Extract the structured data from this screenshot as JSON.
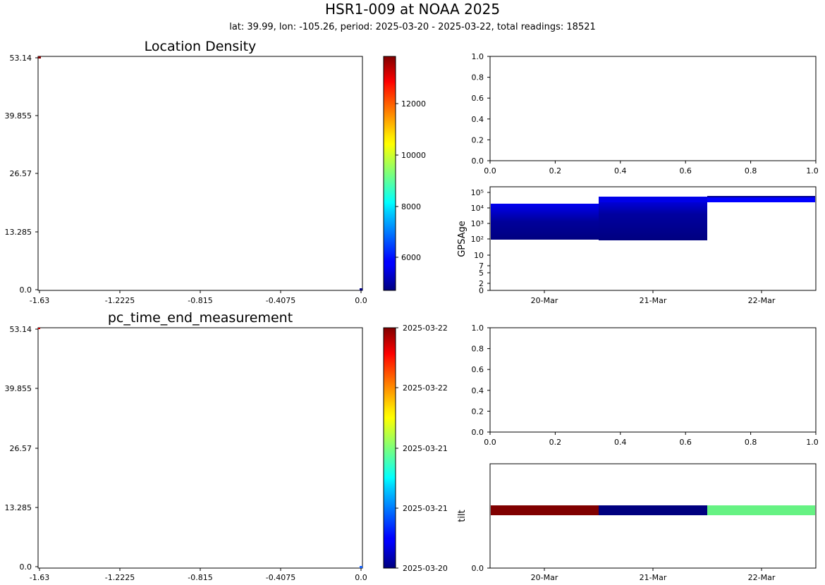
{
  "figure": {
    "title": "HSR1-009 at NOAA 2025",
    "subtitle": "lat: 39.99, lon: -105.26, period: 2025-03-20 - 2025-03-22, total readings: 18521"
  },
  "chart_data": [
    {
      "type": "heatmap",
      "title": "Location Density",
      "x_ticks": [
        "-1.63",
        "-1.2225",
        "-0.815",
        "-0.4075",
        "0.0"
      ],
      "x_tick_values": [
        -1.63,
        -1.2225,
        -0.815,
        -0.4075,
        0.0
      ],
      "y_ticks": [
        "0.0",
        "13.285",
        "26.57",
        "39.855",
        "53.14"
      ],
      "y_tick_values": [
        0.0,
        13.285,
        26.57,
        39.855,
        53.14
      ],
      "xlim": [
        -1.63,
        0.0
      ],
      "ylim": [
        0.0,
        53.14
      ],
      "cells": [
        {
          "x": -1.63,
          "y": 53.14,
          "value": 13700,
          "color": "#800000"
        },
        {
          "x": 0.0,
          "y": 0.0,
          "value": 4800,
          "color": "#00007f"
        }
      ],
      "colorbar": {
        "colormap": "jet",
        "vmin": 4700,
        "vmax": 13800,
        "ticks": [
          "6000",
          "8000",
          "10000",
          "12000"
        ],
        "tick_values": [
          6000,
          8000,
          10000,
          12000
        ]
      }
    },
    {
      "type": "line",
      "title": "",
      "xlim": [
        0.0,
        1.0
      ],
      "ylim": [
        0.0,
        1.0
      ],
      "x_ticks": [
        "0.0",
        "0.2",
        "0.4",
        "0.6",
        "0.8",
        "1.0"
      ],
      "y_ticks": [
        "0.0",
        "0.2",
        "0.4",
        "0.6",
        "0.8",
        "1.0"
      ],
      "series": []
    },
    {
      "type": "heatmap",
      "ylabel": "GPSAge",
      "y_scale": "symlog",
      "x_ticks": [
        "20-Mar",
        "21-Mar",
        "22-Mar"
      ],
      "y_ticks": [
        "0",
        "2",
        "5",
        "7",
        "10",
        "10²",
        "10³",
        "10⁴",
        "10⁵"
      ],
      "y_tick_values": [
        0,
        2,
        5,
        7,
        10,
        100,
        1000,
        10000,
        100000
      ],
      "ylim": [
        0,
        200000
      ],
      "columns": [
        {
          "day": "20-Mar",
          "y_min": 100,
          "y_max": 20000
        },
        {
          "day": "21-Mar",
          "y_min": 95,
          "y_max": 55000
        },
        {
          "day": "22-Mar",
          "y_min": 25000,
          "y_max": 60000
        }
      ]
    },
    {
      "type": "heatmap",
      "title": "pc_time_end_measurement",
      "x_ticks": [
        "-1.63",
        "-1.2225",
        "-0.815",
        "-0.4075",
        "0.0"
      ],
      "x_tick_values": [
        -1.63,
        -1.2225,
        -0.815,
        -0.4075,
        0.0
      ],
      "y_ticks": [
        "0.0",
        "13.285",
        "26.57",
        "39.855",
        "53.14"
      ],
      "y_tick_values": [
        0.0,
        13.285,
        26.57,
        39.855,
        53.14
      ],
      "xlim": [
        -1.63,
        0.0
      ],
      "ylim": [
        0.0,
        53.14
      ],
      "cells": [
        {
          "x": -1.63,
          "y": 53.14,
          "value": 0.95,
          "color": "#c00000"
        },
        {
          "x": 0.0,
          "y": 0.0,
          "value": 0.15,
          "color": "#1060ff"
        }
      ],
      "colorbar": {
        "colormap": "jet",
        "ticks": [
          "2025-03-20",
          "2025-03-21",
          "2025-03-21",
          "2025-03-22",
          "2025-03-22"
        ],
        "tick_values": [
          0.0,
          0.25,
          0.5,
          0.75,
          1.0
        ]
      }
    },
    {
      "type": "line",
      "title": "",
      "xlim": [
        0.0,
        1.0
      ],
      "ylim": [
        0.0,
        1.0
      ],
      "x_ticks": [
        "0.0",
        "0.2",
        "0.4",
        "0.6",
        "0.8",
        "1.0"
      ],
      "y_ticks": [
        "0.0",
        "0.2",
        "0.4",
        "0.6",
        "0.8",
        "1.0"
      ],
      "series": []
    },
    {
      "type": "heatmap",
      "ylabel": "tilt",
      "x_ticks": [
        "20-Mar",
        "21-Mar",
        "22-Mar"
      ],
      "y_ticks": [
        "0.0"
      ],
      "columns": [
        {
          "day": "20-Mar",
          "color": "#800000"
        },
        {
          "day": "21-Mar",
          "color": "#00007f"
        },
        {
          "day": "22-Mar",
          "color": "#66f283"
        }
      ]
    }
  ]
}
